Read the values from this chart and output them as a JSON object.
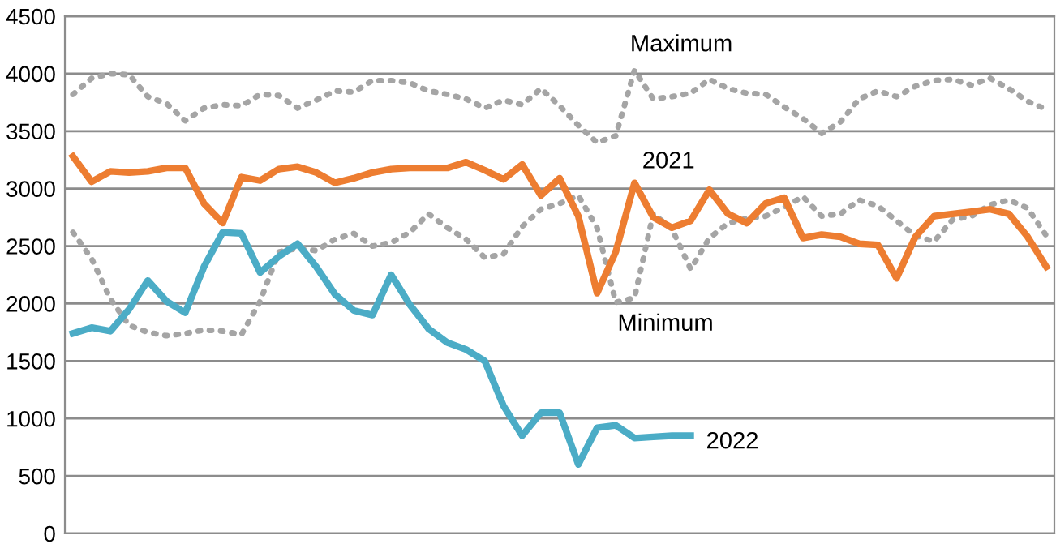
{
  "chart_data": {
    "type": "line",
    "categories": [
      null,
      null,
      null,
      null,
      null,
      null,
      null,
      null,
      null,
      null,
      null,
      null,
      null,
      null,
      null,
      null,
      null,
      null,
      null,
      null,
      null,
      null,
      null,
      null,
      null,
      null,
      null,
      null,
      null,
      null,
      null,
      null,
      null,
      null,
      null,
      null,
      null,
      null,
      null,
      null,
      null,
      null,
      null,
      null,
      null,
      null,
      null,
      null,
      null,
      null,
      null,
      null,
      null
    ],
    "ylim": [
      0,
      4500
    ],
    "yticks": [
      0,
      500,
      1000,
      1500,
      2000,
      2500,
      3000,
      3500,
      4000,
      4500
    ],
    "grid": "y",
    "legend": false,
    "series": [
      {
        "name": "Maximum",
        "color": "#a5a5a5",
        "line_style": "dotted",
        "values": [
          3820,
          3960,
          4000,
          3990,
          3800,
          3740,
          3590,
          3700,
          3730,
          3720,
          3820,
          3810,
          3700,
          3770,
          3850,
          3840,
          3940,
          3940,
          3920,
          3850,
          3820,
          3780,
          3700,
          3770,
          3730,
          3870,
          3720,
          3550,
          3400,
          3460,
          4030,
          3780,
          3800,
          3830,
          3950,
          3870,
          3830,
          3820,
          3710,
          3610,
          3480,
          3580,
          3780,
          3850,
          3800,
          3890,
          3940,
          3950,
          3900,
          3960,
          3870,
          3760,
          3690
        ]
      },
      {
        "name": "Minimum",
        "color": "#a5a5a5",
        "line_style": "dotted",
        "values": [
          2620,
          2390,
          2040,
          1810,
          1750,
          1720,
          1740,
          1770,
          1760,
          1730,
          2020,
          2450,
          2480,
          2460,
          2560,
          2610,
          2500,
          2530,
          2620,
          2780,
          2660,
          2560,
          2400,
          2430,
          2670,
          2820,
          2870,
          2940,
          2660,
          2010,
          2050,
          2780,
          2650,
          2300,
          2570,
          2700,
          2740,
          2760,
          2840,
          2930,
          2760,
          2780,
          2900,
          2850,
          2720,
          2590,
          2540,
          2730,
          2760,
          2860,
          2900,
          2830,
          2590
        ]
      },
      {
        "name": "2021",
        "color": "#ed7d31",
        "line_style": "solid",
        "values": [
          3280,
          3060,
          3150,
          3140,
          3150,
          3180,
          3180,
          2870,
          2700,
          3100,
          3070,
          3170,
          3190,
          3140,
          3050,
          3090,
          3140,
          3170,
          3180,
          3180,
          3180,
          3230,
          3160,
          3080,
          3210,
          2940,
          3090,
          2760,
          2090,
          2450,
          3050,
          2750,
          2660,
          2720,
          2990,
          2780,
          2700,
          2870,
          2920,
          2570,
          2600,
          2580,
          2520,
          2510,
          2220,
          2580,
          2760,
          2780,
          2800,
          2820,
          2780,
          2580,
          2320
        ]
      },
      {
        "name": "2022",
        "color": "#4bacc6",
        "line_style": "solid",
        "values": [
          1740,
          1790,
          1760,
          1950,
          2200,
          2020,
          1920,
          2320,
          2620,
          2610,
          2270,
          2410,
          2520,
          2320,
          2080,
          1940,
          1900,
          2250,
          1990,
          1780,
          1660,
          1600,
          1500,
          1110,
          850,
          1050,
          1050,
          600,
          920,
          940,
          830,
          840,
          850,
          850,
          null,
          null,
          null,
          null,
          null,
          null,
          null,
          null,
          null,
          null,
          null,
          null,
          null,
          null,
          null,
          null,
          null,
          null,
          null
        ]
      }
    ]
  }
}
